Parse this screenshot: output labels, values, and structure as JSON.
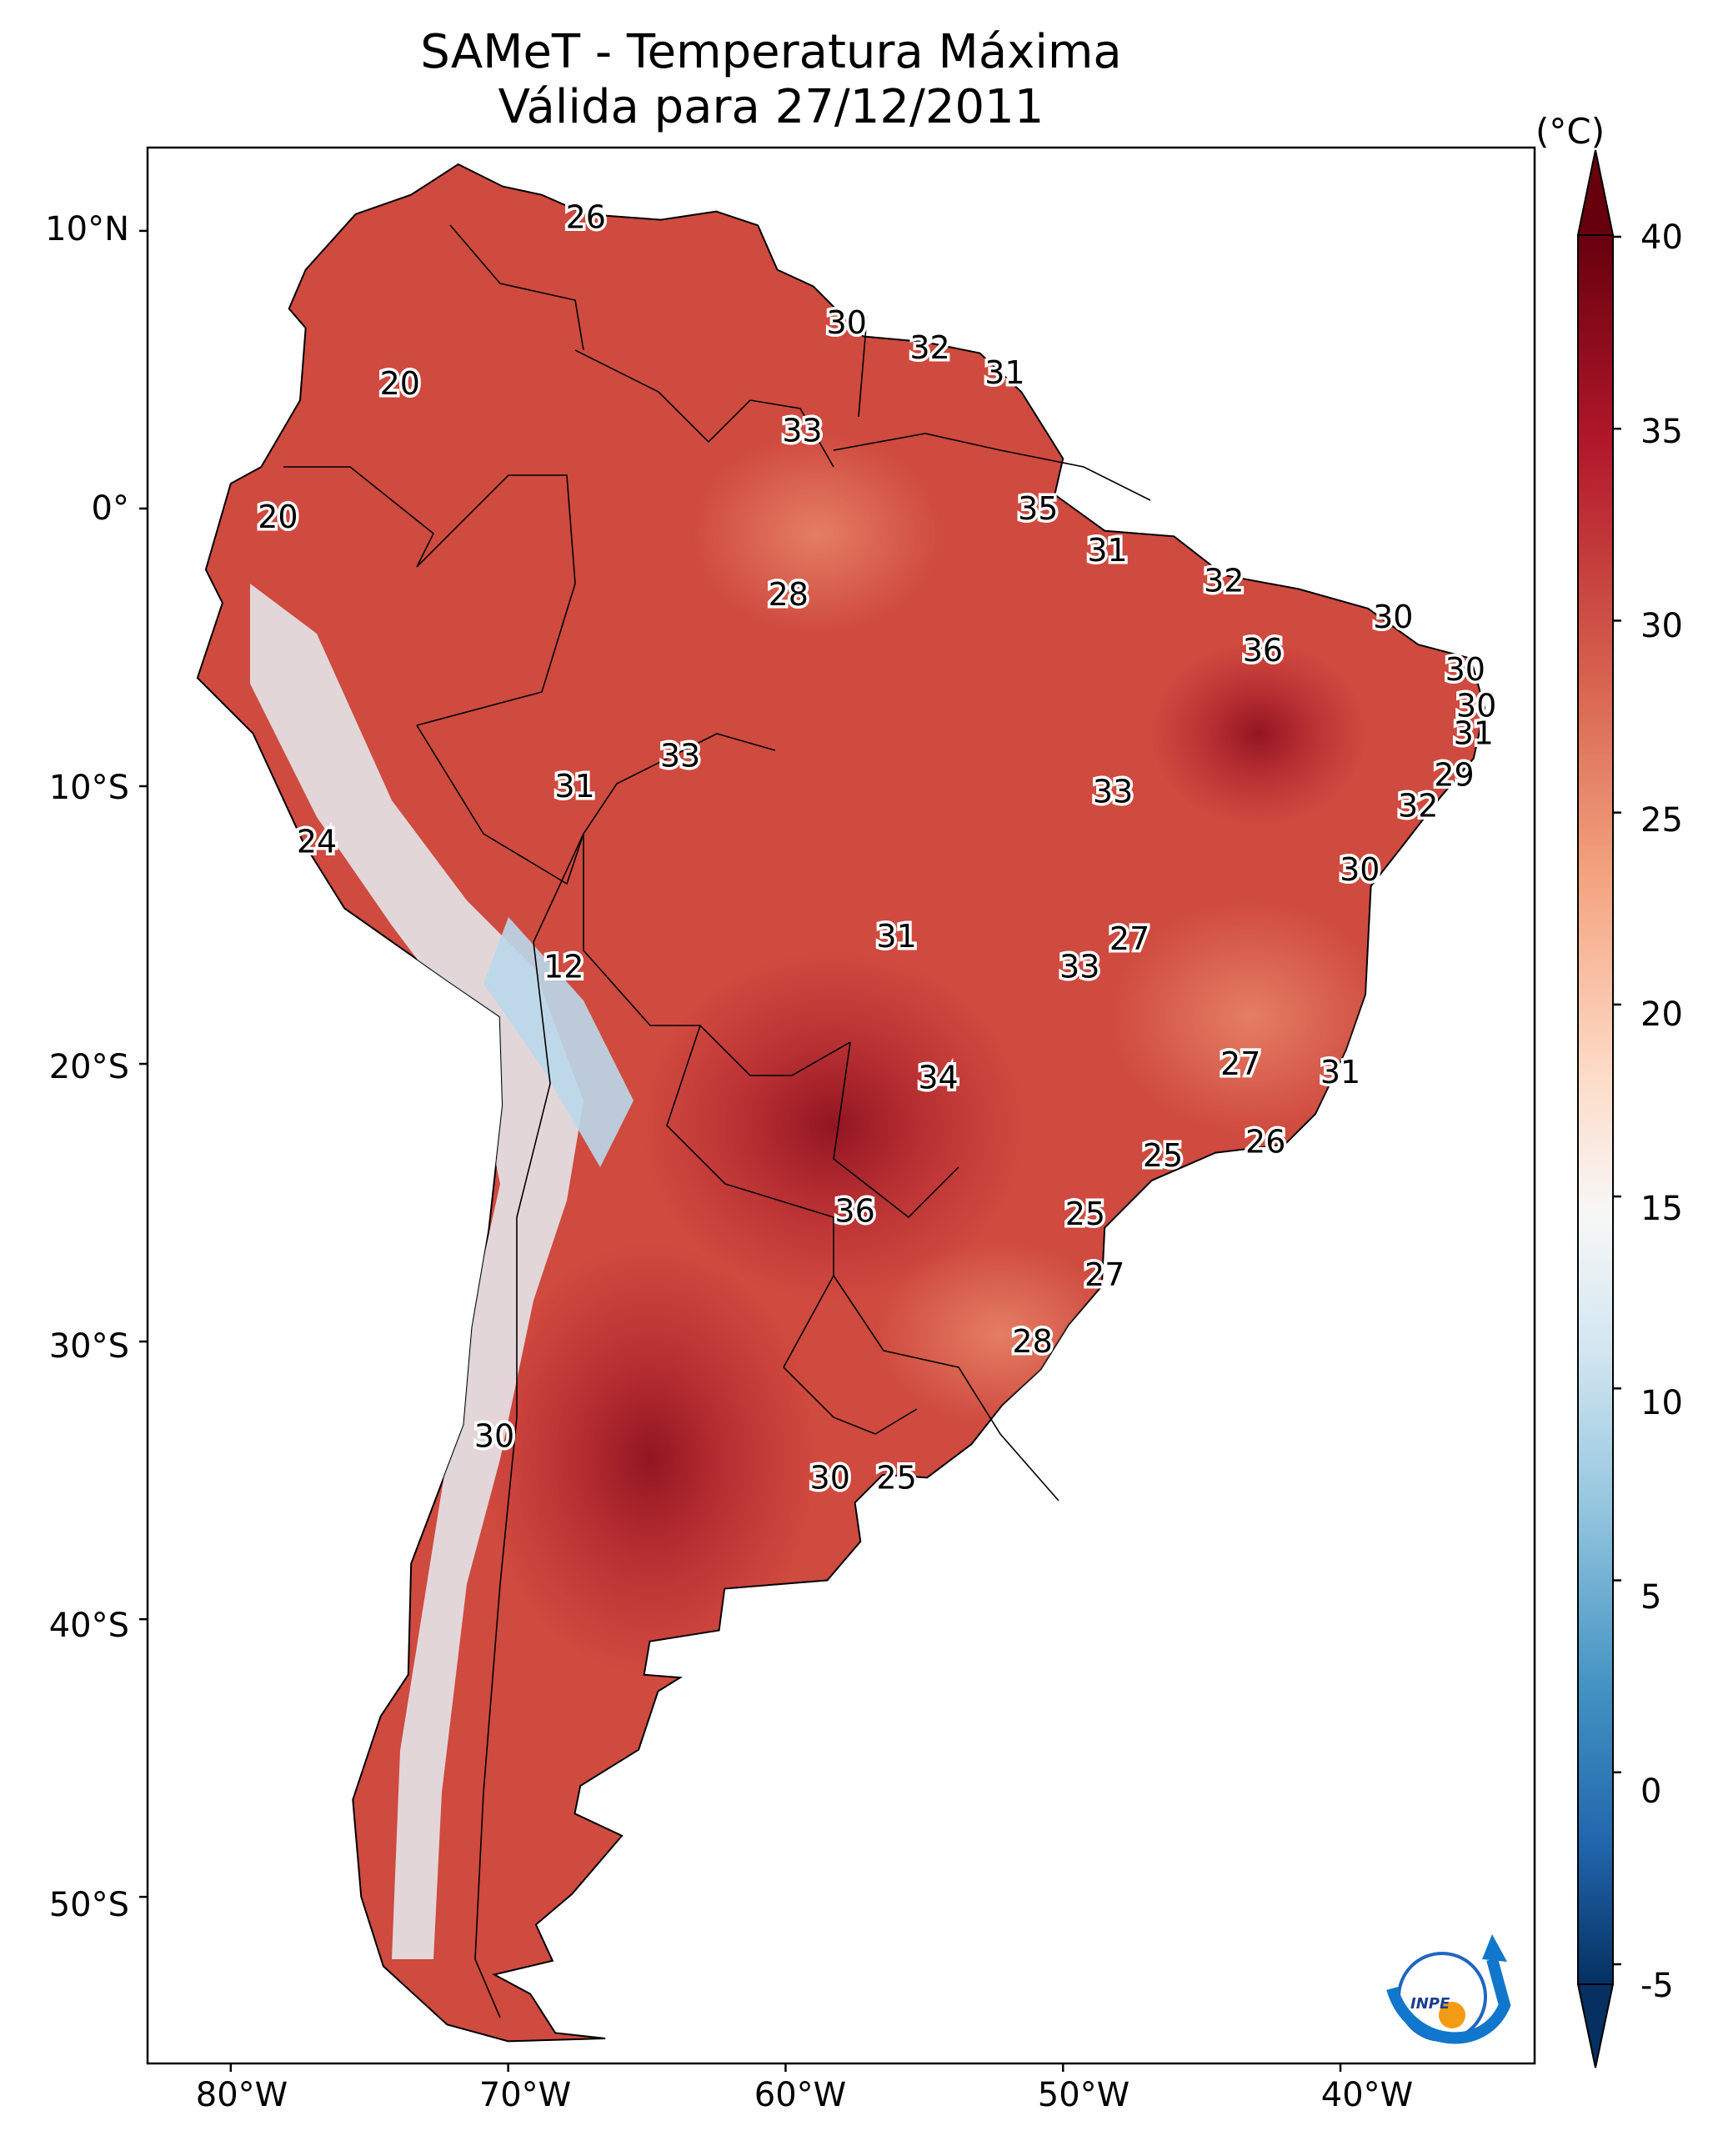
{
  "title_line1": "SAMeT - Temperatura Máxima",
  "title_line2": "Válida para 27/12/2011",
  "colorbar": {
    "unit": "(°C)",
    "ticks": [
      "40",
      "35",
      "30",
      "25",
      "20",
      "15",
      "10",
      "5",
      "0",
      "-5"
    ],
    "colors": {
      "hot": "#67000d",
      "warm": "#d6604d",
      "mild": "#f4a582",
      "neutral": "#f7f7f7",
      "cool": "#92c5de",
      "cold": "#053061"
    }
  },
  "axes": {
    "lat_labels": [
      "10°N",
      "0°",
      "10°S",
      "20°S",
      "30°S",
      "40°S",
      "50°S"
    ],
    "lon_labels": [
      "80°W",
      "70°W",
      "60°W",
      "50°W",
      "40°W"
    ]
  },
  "contour_labels": [
    {
      "value": "26",
      "lon": -67.2,
      "lat": 10.5
    },
    {
      "value": "30",
      "lon": -57.8,
      "lat": 6.7
    },
    {
      "value": "32",
      "lon": -54.8,
      "lat": 5.8
    },
    {
      "value": "31",
      "lon": -52.1,
      "lat": 4.9
    },
    {
      "value": "20",
      "lon": -73.9,
      "lat": 4.5
    },
    {
      "value": "33",
      "lon": -59.4,
      "lat": 2.8
    },
    {
      "value": "20",
      "lon": -78.3,
      "lat": -0.3
    },
    {
      "value": "35",
      "lon": -50.9,
      "lat": 0.0
    },
    {
      "value": "31",
      "lon": -48.4,
      "lat": -1.5
    },
    {
      "value": "28",
      "lon": -59.9,
      "lat": -3.1
    },
    {
      "value": "32",
      "lon": -44.2,
      "lat": -2.6
    },
    {
      "value": "30",
      "lon": -38.1,
      "lat": -3.9
    },
    {
      "value": "36",
      "lon": -42.8,
      "lat": -5.1
    },
    {
      "value": "30",
      "lon": -35.5,
      "lat": -5.8
    },
    {
      "value": "30",
      "lon": -35.1,
      "lat": -7.1
    },
    {
      "value": "31",
      "lon": -35.2,
      "lat": -8.1
    },
    {
      "value": "33",
      "lon": -63.8,
      "lat": -8.9
    },
    {
      "value": "31",
      "lon": -67.6,
      "lat": -10.0
    },
    {
      "value": "33",
      "lon": -48.2,
      "lat": -10.2
    },
    {
      "value": "29",
      "lon": -35.9,
      "lat": -9.6
    },
    {
      "value": "32",
      "lon": -37.2,
      "lat": -10.7
    },
    {
      "value": "24",
      "lon": -76.9,
      "lat": -12.0
    },
    {
      "value": "30",
      "lon": -39.3,
      "lat": -13.0
    },
    {
      "value": "27",
      "lon": -47.6,
      "lat": -15.5
    },
    {
      "value": "31",
      "lon": -56.0,
      "lat": -15.4
    },
    {
      "value": "12",
      "lon": -68.0,
      "lat": -16.5
    },
    {
      "value": "33",
      "lon": -49.4,
      "lat": -16.5
    },
    {
      "value": "27",
      "lon": -43.6,
      "lat": -20.0
    },
    {
      "value": "34",
      "lon": -54.5,
      "lat": -20.5
    },
    {
      "value": "31",
      "lon": -40.0,
      "lat": -20.3
    },
    {
      "value": "26",
      "lon": -42.7,
      "lat": -22.8
    },
    {
      "value": "25",
      "lon": -46.4,
      "lat": -23.3
    },
    {
      "value": "36",
      "lon": -57.5,
      "lat": -25.3
    },
    {
      "value": "25",
      "lon": -49.2,
      "lat": -25.4
    },
    {
      "value": "27",
      "lon": -48.5,
      "lat": -27.6
    },
    {
      "value": "28",
      "lon": -51.1,
      "lat": -30.0
    },
    {
      "value": "30",
      "lon": -70.5,
      "lat": -33.4
    },
    {
      "value": "30",
      "lon": -58.4,
      "lat": -34.9
    },
    {
      "value": "25",
      "lon": -56.0,
      "lat": -34.9
    }
  ],
  "logo": {
    "text": "INPE"
  }
}
